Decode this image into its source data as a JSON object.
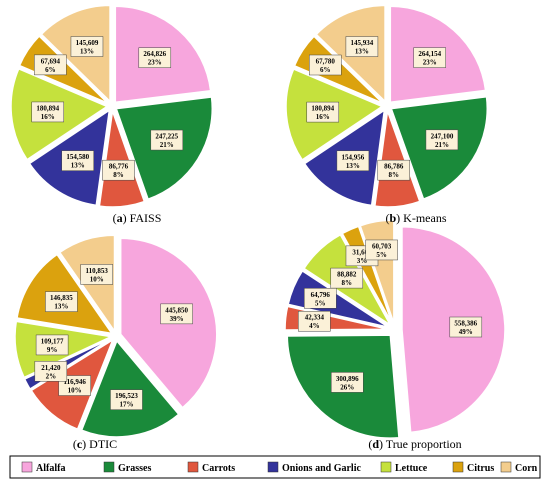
{
  "colors": {
    "Alfalfa": "#f7a6dd",
    "Grasses": "#1a8a3a",
    "Carrots": "#e0573e",
    "Onions and Garlic": "#33339b",
    "Lettuce": "#c5e13d",
    "Citrus": "#dba20e",
    "Corn": "#f3cd8d"
  },
  "legend": [
    "Alfalfa",
    "Grasses",
    "Carrots",
    "Onions and Garlic",
    "Lettuce",
    "Citrus",
    "Corn"
  ],
  "chart_data": [
    {
      "type": "pie",
      "caption_tag": "(a)",
      "caption_text": "FAISS",
      "slices": [
        {
          "name": "Alfalfa",
          "value": 264826,
          "label": "264,826",
          "pct": "23%"
        },
        {
          "name": "Grasses",
          "value": 247225,
          "label": "247,225",
          "pct": "21%"
        },
        {
          "name": "Carrots",
          "value": 86776,
          "label": "86,776",
          "pct": "8%"
        },
        {
          "name": "Onions and Garlic",
          "value": 154580,
          "label": "154,580",
          "pct": "13%"
        },
        {
          "name": "Lettuce",
          "value": 180894,
          "label": "180,894",
          "pct": "16%"
        },
        {
          "name": "Citrus",
          "value": 67694,
          "label": "67,694",
          "pct": "6%"
        },
        {
          "name": "Corn",
          "value": 145609,
          "label": "145,609",
          "pct": "13%"
        }
      ]
    },
    {
      "type": "pie",
      "caption_tag": "(b)",
      "caption_text": "K-means",
      "slices": [
        {
          "name": "Alfalfa",
          "value": 264154,
          "label": "264,154",
          "pct": "23%"
        },
        {
          "name": "Grasses",
          "value": 247100,
          "label": "247,100",
          "pct": "21%"
        },
        {
          "name": "Carrots",
          "value": 86786,
          "label": "86,786",
          "pct": "8%"
        },
        {
          "name": "Onions and Garlic",
          "value": 154956,
          "label": "154,956",
          "pct": "13%"
        },
        {
          "name": "Lettuce",
          "value": 180894,
          "label": "180,894",
          "pct": "16%"
        },
        {
          "name": "Citrus",
          "value": 67780,
          "label": "67,780",
          "pct": "6%"
        },
        {
          "name": "Corn",
          "value": 145934,
          "label": "145,934",
          "pct": "13%"
        }
      ]
    },
    {
      "type": "pie",
      "caption_tag": "(c)",
      "caption_text": "DTIC",
      "slices": [
        {
          "name": "Alfalfa",
          "value": 445850,
          "label": "445,850",
          "pct": "39%"
        },
        {
          "name": "Grasses",
          "value": 196523,
          "label": "196,523",
          "pct": "17%"
        },
        {
          "name": "Carrots",
          "value": 116946,
          "label": "116,946",
          "pct": "10%"
        },
        {
          "name": "Onions and Garlic",
          "value": 21420,
          "label": "21,420",
          "pct": "2%"
        },
        {
          "name": "Lettuce",
          "value": 109177,
          "label": "109,177",
          "pct": "9%"
        },
        {
          "name": "Citrus",
          "value": 146835,
          "label": "146,835",
          "pct": "13%"
        },
        {
          "name": "Corn",
          "value": 110853,
          "label": "110,853",
          "pct": "10%"
        }
      ]
    },
    {
      "type": "pie",
      "caption_tag": "(d)",
      "caption_text": "True proportion",
      "slices": [
        {
          "name": "Alfalfa",
          "value": 558386,
          "label": "558,386",
          "pct": "49%"
        },
        {
          "name": "Grasses",
          "value": 300896,
          "label": "300,896",
          "pct": "26%"
        },
        {
          "name": "Carrots",
          "value": 42334,
          "label": "42,334",
          "pct": "4%"
        },
        {
          "name": "Onions and Garlic",
          "value": 64796,
          "label": "64,796",
          "pct": "5%"
        },
        {
          "name": "Lettuce",
          "value": 88882,
          "label": "88,882",
          "pct": "8%"
        },
        {
          "name": "Citrus",
          "value": 31607,
          "label": "31,607",
          "pct": "3%"
        },
        {
          "name": "Corn",
          "value": 60703,
          "label": "60,703",
          "pct": "5%"
        }
      ]
    }
  ]
}
